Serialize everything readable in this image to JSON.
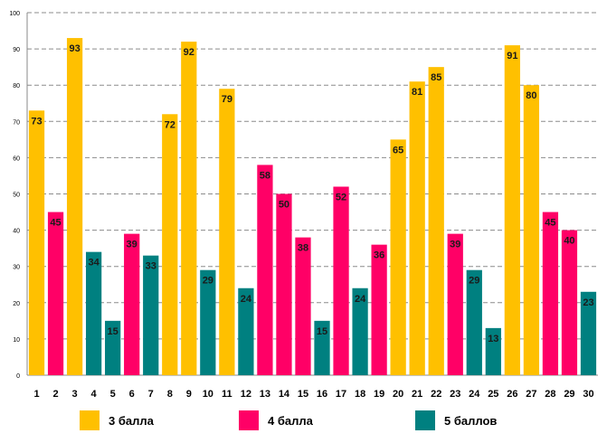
{
  "chart_data": {
    "type": "bar",
    "title": "",
    "xlabel": "",
    "ylabel": "",
    "ylim": [
      0,
      100
    ],
    "yticks": [
      0,
      10,
      20,
      30,
      40,
      50,
      60,
      70,
      80,
      90,
      100
    ],
    "grid": true,
    "categories": [
      "1",
      "2",
      "3",
      "4",
      "5",
      "6",
      "7",
      "8",
      "9",
      "10",
      "11",
      "12",
      "13",
      "14",
      "15",
      "16",
      "17",
      "18",
      "19",
      "20",
      "21",
      "22",
      "23",
      "24",
      "25",
      "26",
      "27",
      "28",
      "29",
      "30"
    ],
    "values": [
      73,
      45,
      93,
      34,
      15,
      39,
      33,
      72,
      92,
      29,
      79,
      24,
      58,
      50,
      38,
      15,
      52,
      24,
      36,
      65,
      81,
      85,
      39,
      29,
      13,
      91,
      80,
      45,
      40,
      23
    ],
    "value_groups": [
      3,
      4,
      3,
      5,
      5,
      4,
      5,
      3,
      3,
      5,
      3,
      5,
      4,
      4,
      4,
      5,
      4,
      5,
      4,
      3,
      3,
      3,
      4,
      5,
      5,
      3,
      3,
      4,
      4,
      5
    ],
    "groups": [
      {
        "key": 3,
        "name": "3 балла",
        "color": "#FFC000"
      },
      {
        "key": 4,
        "name": "4 балла",
        "color": "#FF0066"
      },
      {
        "key": 5,
        "name": "5 баллов",
        "color": "#008080"
      }
    ],
    "legend_position": "bottom"
  }
}
